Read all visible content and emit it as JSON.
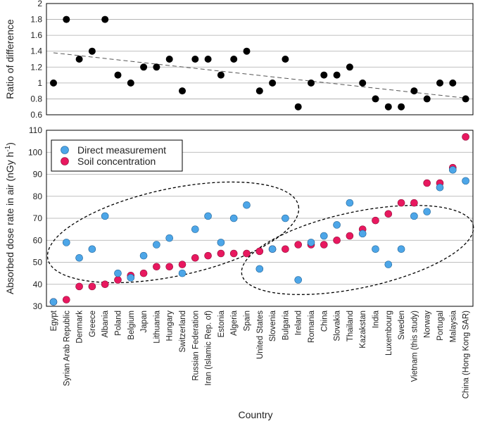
{
  "chart_data": [
    {
      "type": "scatter",
      "panel": "top",
      "ylabel": "Ratio of difference",
      "ylim": [
        0.6,
        2
      ],
      "yticks": [
        0.6,
        0.8,
        1,
        1.2,
        1.4,
        1.6,
        1.8,
        2
      ],
      "ytick_labels": [
        "0.6",
        "0.8",
        "1",
        "1.2",
        "1.4",
        "1.6",
        "1.8",
        "2"
      ],
      "grid": true,
      "series": [
        {
          "name": "Ratio of difference",
          "color": "#000000",
          "values": [
            1.0,
            1.8,
            1.3,
            1.4,
            1.8,
            1.1,
            1.0,
            1.2,
            1.2,
            1.3,
            0.9,
            1.3,
            1.3,
            1.1,
            1.3,
            1.4,
            0.9,
            1.0,
            1.3,
            0.7,
            1.0,
            1.1,
            1.1,
            1.2,
            1.0,
            0.8,
            0.7,
            0.7,
            0.9,
            0.8,
            1.0,
            1.0,
            0.8
          ]
        }
      ],
      "trend_line": {
        "style": "dashed",
        "y_start": 1.38,
        "y_end": 0.81
      }
    },
    {
      "type": "scatter",
      "panel": "bottom",
      "xlabel": "Country",
      "ylabel_main": "Absorbed dose rate in air (nGy h",
      "ylabel_sup": "-1",
      "ylabel_close": ")",
      "ylim": [
        30,
        110
      ],
      "yticks": [
        30,
        40,
        50,
        60,
        70,
        80,
        90,
        100,
        110
      ],
      "ytick_labels": [
        "30",
        "40",
        "50",
        "60",
        "70",
        "80",
        "90",
        "100",
        "110"
      ],
      "grid": true,
      "legend_position": "top-left",
      "categories": [
        "Egypt",
        "Syrian Arab Republic",
        "Denmark",
        "Greece",
        "Albania",
        "Poland",
        "Belgium",
        "Japan",
        "Lithuania",
        "Hungary",
        "Switzerland",
        "Russian Federation",
        "Iran (Islamic Rep. of)",
        "Estonia",
        "Algeria",
        "Spain",
        "United States",
        "Slovenia",
        "Bulgaria",
        "Ireland",
        "Romania",
        "China",
        "Slovakia",
        "Thailand",
        "Kazakstan",
        "India",
        "Luxembourg",
        "Sweden",
        "Vietnam (this study)",
        "Norway",
        "Portugal",
        "Malaysia",
        "China (Hong Kong SAR)"
      ],
      "series": [
        {
          "name": "Direct measurement",
          "color": "#4da6e8",
          "values": [
            32,
            59,
            52,
            56,
            71,
            45,
            43,
            53,
            58,
            61,
            45,
            65,
            71,
            59,
            70,
            76,
            47,
            56,
            70,
            42,
            59,
            62,
            67,
            77,
            63,
            56,
            49,
            56,
            71,
            73,
            84,
            92,
            87
          ]
        },
        {
          "name": "Soil concentration",
          "color": "#e8185f",
          "values": [
            32,
            33,
            39,
            39,
            40,
            42,
            44,
            45,
            48,
            48,
            49,
            52,
            53,
            54,
            54,
            54,
            55,
            56,
            56,
            58,
            58,
            58,
            60,
            62,
            65,
            69,
            72,
            77,
            77,
            86,
            86,
            93,
            107
          ]
        }
      ],
      "annotations": [
        {
          "type": "dashed-ellipse",
          "group": "left cluster"
        },
        {
          "type": "dashed-ellipse",
          "group": "right cluster"
        }
      ]
    }
  ]
}
